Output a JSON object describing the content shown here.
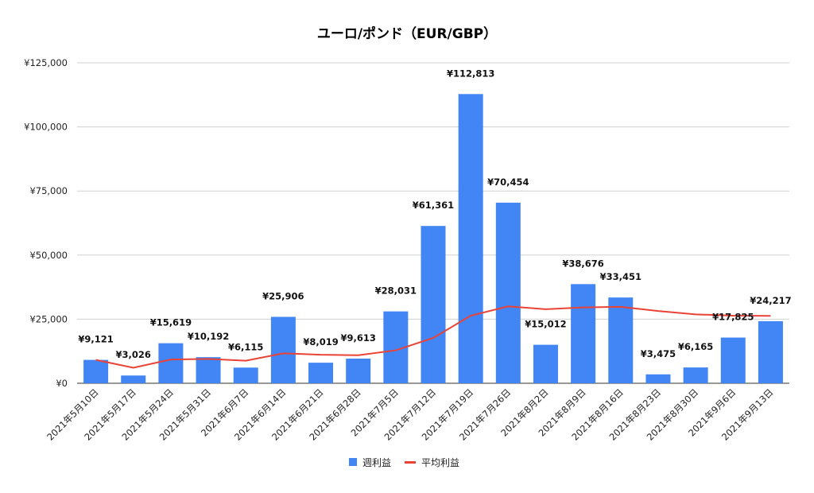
{
  "chart_data": {
    "type": "bar",
    "title": "ユーロ/ポンド（EUR/GBP）",
    "categories": [
      "2021年5月10日",
      "2021年5月17日",
      "2021年5月24日",
      "2021年5月31日",
      "2021年6月7日",
      "2021年6月14日",
      "2021年6月21日",
      "2021年6月28日",
      "2021年7月5日",
      "2021年7月12日",
      "2021年7月19日",
      "2021年7月26日",
      "2021年8月2日",
      "2021年8月9日",
      "2021年8月16日",
      "2021年8月23日",
      "2021年8月30日",
      "2021年9月6日",
      "2021年9月13日"
    ],
    "series": [
      {
        "name": "週利益",
        "type": "bar",
        "color": "#4285f4",
        "values": [
          9121,
          3026,
          15619,
          10192,
          6115,
          25906,
          8019,
          9613,
          28031,
          61361,
          112813,
          70454,
          15012,
          38676,
          33451,
          3475,
          6165,
          17825,
          24217
        ],
        "labels": [
          "¥9,121",
          "¥3,026",
          "¥15,619",
          "¥10,192",
          "¥6,115",
          "¥25,906",
          "¥8,019",
          "¥9,613",
          "¥28,031",
          "¥61,361",
          "¥112,813",
          "¥70,454",
          "¥15,012",
          "¥38,676",
          "¥33,451",
          "¥3,475",
          "¥6,165",
          "¥17,825",
          "¥24,217"
        ]
      },
      {
        "name": "平均利益",
        "type": "line",
        "color": "#ea4335",
        "values": [
          9121,
          6074,
          9255,
          9490,
          8815,
          11663,
          11143,
          10951,
          12849,
          17700,
          26347,
          30023,
          28868,
          29568,
          29827,
          28180,
          26885,
          26382,
          26268
        ]
      }
    ],
    "ylim": [
      0,
      125000
    ],
    "yticks": [
      0,
      25000,
      50000,
      75000,
      100000,
      125000
    ],
    "ytick_labels": [
      "¥0",
      "¥25,000",
      "¥50,000",
      "¥75,000",
      "¥100,000",
      "¥125,000"
    ],
    "grid": true,
    "legend": "bottom"
  }
}
